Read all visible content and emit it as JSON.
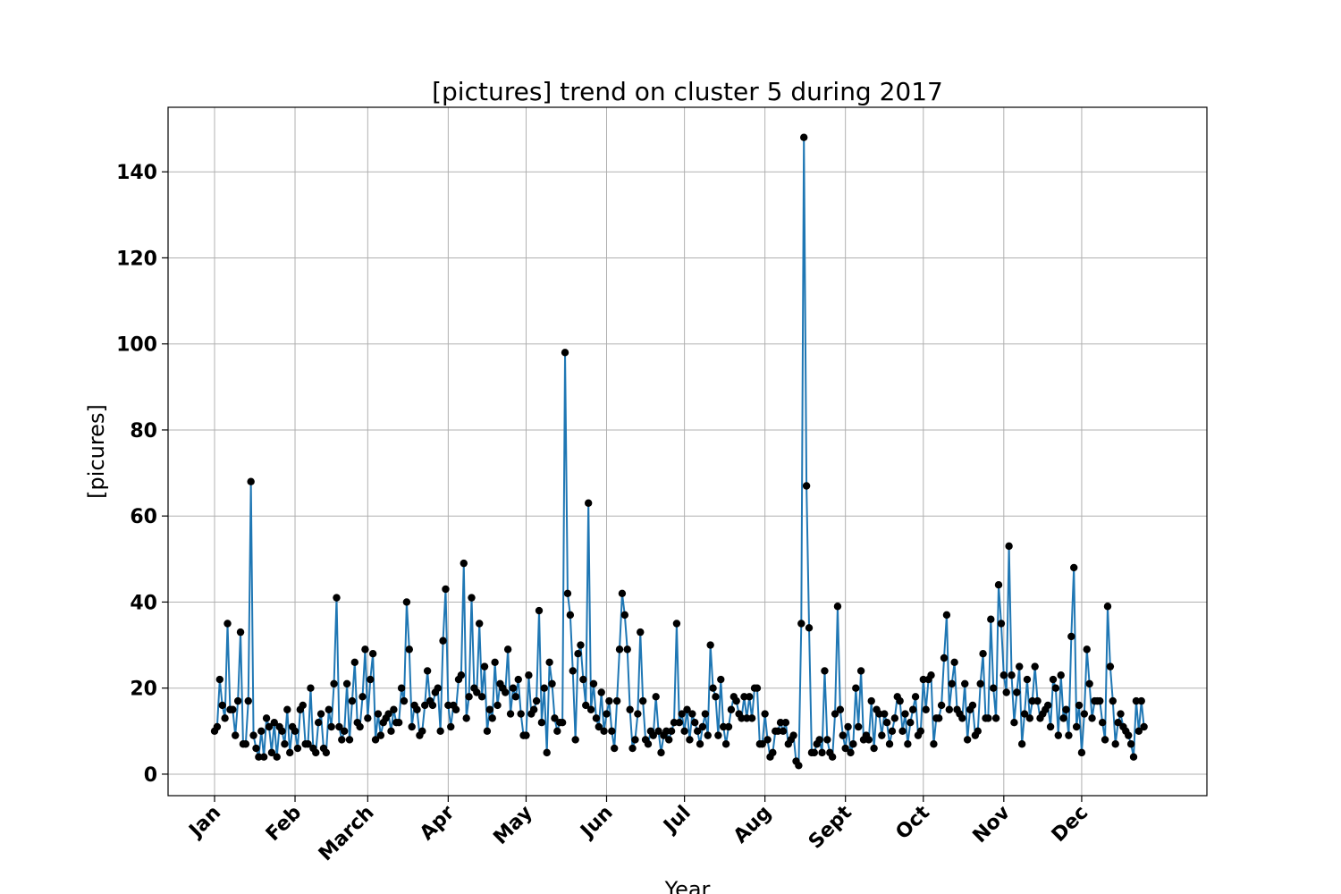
{
  "chart_data": {
    "type": "line",
    "title": "[pictures] trend on cluster 5 during 2017",
    "xlabel": "Year",
    "ylabel": "[picures]",
    "ylim": [
      -5,
      155
    ],
    "yticks": [
      0,
      20,
      40,
      60,
      80,
      100,
      120,
      140
    ],
    "grid": true,
    "x_ticks": [
      {
        "day": 0,
        "label": "Jan"
      },
      {
        "day": 31,
        "label": "Feb"
      },
      {
        "day": 59,
        "label": "March"
      },
      {
        "day": 90,
        "label": "Apr"
      },
      {
        "day": 120,
        "label": "May"
      },
      {
        "day": 151,
        "label": "Jun"
      },
      {
        "day": 181,
        "label": "Jul"
      },
      {
        "day": 212,
        "label": "Aug"
      },
      {
        "day": 243,
        "label": "Sept"
      },
      {
        "day": 273,
        "label": "Oct"
      },
      {
        "day": 304,
        "label": "Nov"
      },
      {
        "day": 334,
        "label": "Dec"
      }
    ],
    "series": [
      {
        "color": "#1f77b4",
        "marker_color": "#000000",
        "values": [
          10,
          11,
          22,
          16,
          13,
          35,
          15,
          15,
          9,
          17,
          33,
          7,
          7,
          17,
          68,
          9,
          6,
          4,
          10,
          4,
          13,
          11,
          5,
          12,
          4,
          11,
          10,
          7,
          15,
          5,
          11,
          10,
          6,
          15,
          16,
          7,
          7,
          20,
          6,
          5,
          12,
          14,
          6,
          5,
          15,
          11,
          21,
          41,
          11,
          8,
          10,
          21,
          8,
          17,
          26,
          12,
          11,
          18,
          29,
          13,
          22,
          28,
          8,
          14,
          9,
          12,
          13,
          14,
          10,
          15,
          12,
          12,
          20,
          17,
          40,
          29,
          11,
          16,
          15,
          9,
          10,
          16,
          24,
          17,
          16,
          19,
          20,
          10,
          31,
          43,
          16,
          11,
          16,
          15,
          22,
          23,
          49,
          13,
          18,
          41,
          20,
          19,
          35,
          18,
          25,
          10,
          15,
          13,
          26,
          16,
          21,
          20,
          19,
          29,
          14,
          20,
          18,
          22,
          14,
          9,
          9,
          23,
          14,
          15,
          17,
          38,
          12,
          20,
          5,
          26,
          21,
          13,
          10,
          12,
          12,
          98,
          42,
          37,
          24,
          8,
          28,
          30,
          22,
          16,
          63,
          15,
          21,
          13,
          11,
          19,
          10,
          14,
          17,
          10,
          6,
          17,
          29,
          42,
          37,
          29,
          15,
          6,
          8,
          14,
          33,
          17,
          8,
          7,
          10,
          9,
          18,
          10,
          5,
          9,
          10,
          8,
          10,
          12,
          35,
          12,
          14,
          10,
          15,
          8,
          14,
          12,
          10,
          7,
          11,
          14,
          9,
          30,
          20,
          18,
          9,
          22,
          11,
          7,
          11,
          15,
          18,
          17,
          14,
          13,
          18,
          13,
          18,
          13,
          20,
          20,
          7,
          7,
          14,
          8,
          4,
          5,
          10,
          10,
          12,
          10,
          12,
          7,
          8,
          9,
          3,
          2,
          35,
          148,
          67,
          34,
          5,
          5,
          7,
          8,
          5,
          24,
          8,
          5,
          4,
          14,
          39,
          15,
          9,
          6,
          11,
          5,
          7,
          20,
          11,
          24,
          8,
          9,
          8,
          17,
          6,
          15,
          14,
          9,
          14,
          12,
          7,
          10,
          13,
          18,
          17,
          10,
          14,
          7,
          12,
          15,
          18,
          9,
          10,
          22,
          15,
          22,
          23,
          7,
          13,
          13,
          16,
          27,
          37,
          15,
          21,
          26,
          15,
          14,
          13,
          21,
          8,
          15,
          16,
          9,
          10,
          21,
          28,
          13,
          13,
          36,
          20,
          13,
          44,
          35,
          23,
          19,
          53,
          23,
          12,
          19,
          25,
          7,
          14,
          22,
          13,
          17,
          25,
          17,
          13,
          14,
          15,
          16,
          11,
          22,
          20,
          9,
          23,
          13,
          15,
          9,
          32,
          48,
          11,
          16,
          5,
          14,
          29,
          21,
          13,
          17,
          17,
          17,
          12,
          8,
          39,
          25,
          17,
          7,
          12,
          14,
          11,
          10,
          9,
          7,
          4,
          17,
          10,
          17,
          11
        ]
      }
    ]
  }
}
